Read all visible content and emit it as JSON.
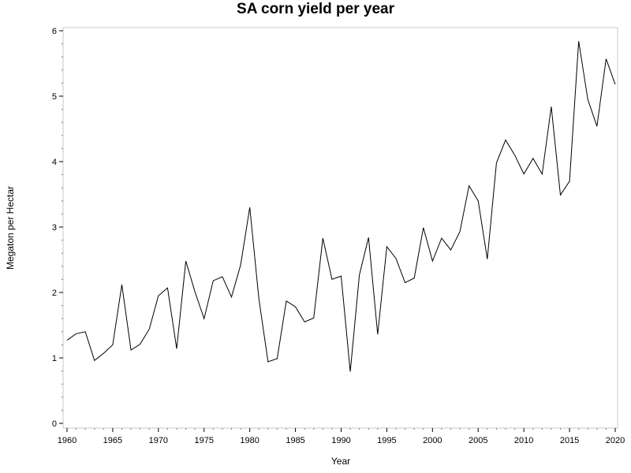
{
  "chart_data": {
    "type": "line",
    "title": "SA corn yield per year",
    "xlabel": "Year",
    "ylabel": "Megaton per Hectar",
    "xlim": [
      1960,
      2020
    ],
    "ylim": [
      0,
      6
    ],
    "x_ticks": [
      1960,
      1965,
      1970,
      1975,
      1980,
      1985,
      1990,
      1995,
      2000,
      2005,
      2010,
      2015,
      2020
    ],
    "y_ticks": [
      0,
      1,
      2,
      3,
      4,
      5,
      6
    ],
    "grid": false,
    "legend": "none",
    "line_color": "#000000",
    "x": [
      1960,
      1961,
      1962,
      1963,
      1964,
      1965,
      1966,
      1967,
      1968,
      1969,
      1970,
      1971,
      1972,
      1973,
      1974,
      1975,
      1976,
      1977,
      1978,
      1979,
      1980,
      1981,
      1982,
      1983,
      1984,
      1985,
      1986,
      1987,
      1988,
      1989,
      1990,
      1991,
      1992,
      1993,
      1994,
      1995,
      1996,
      1997,
      1998,
      1999,
      2000,
      2001,
      2002,
      2003,
      2004,
      2005,
      2006,
      2007,
      2008,
      2009,
      2010,
      2011,
      2012,
      2013,
      2014,
      2015,
      2016,
      2017,
      2018,
      2019,
      2020
    ],
    "series": [
      {
        "values": [
          1.27,
          1.37,
          1.4,
          0.96,
          1.07,
          1.2,
          2.12,
          1.12,
          1.21,
          1.44,
          1.95,
          2.07,
          1.14,
          2.48,
          2.01,
          1.6,
          2.18,
          2.24,
          1.93,
          2.42,
          3.3,
          1.9,
          0.94,
          0.99,
          1.87,
          1.78,
          1.55,
          1.61,
          2.83,
          2.2,
          2.25,
          0.79,
          2.27,
          2.84,
          1.36,
          2.7,
          2.52,
          2.15,
          2.22,
          2.99,
          2.48,
          2.83,
          2.65,
          2.93,
          3.63,
          3.4,
          2.51,
          3.98,
          4.33,
          4.1,
          3.81,
          4.05,
          3.81,
          4.84,
          3.49,
          3.7,
          5.84,
          4.95,
          4.54,
          5.57,
          5.18
        ]
      }
    ]
  }
}
